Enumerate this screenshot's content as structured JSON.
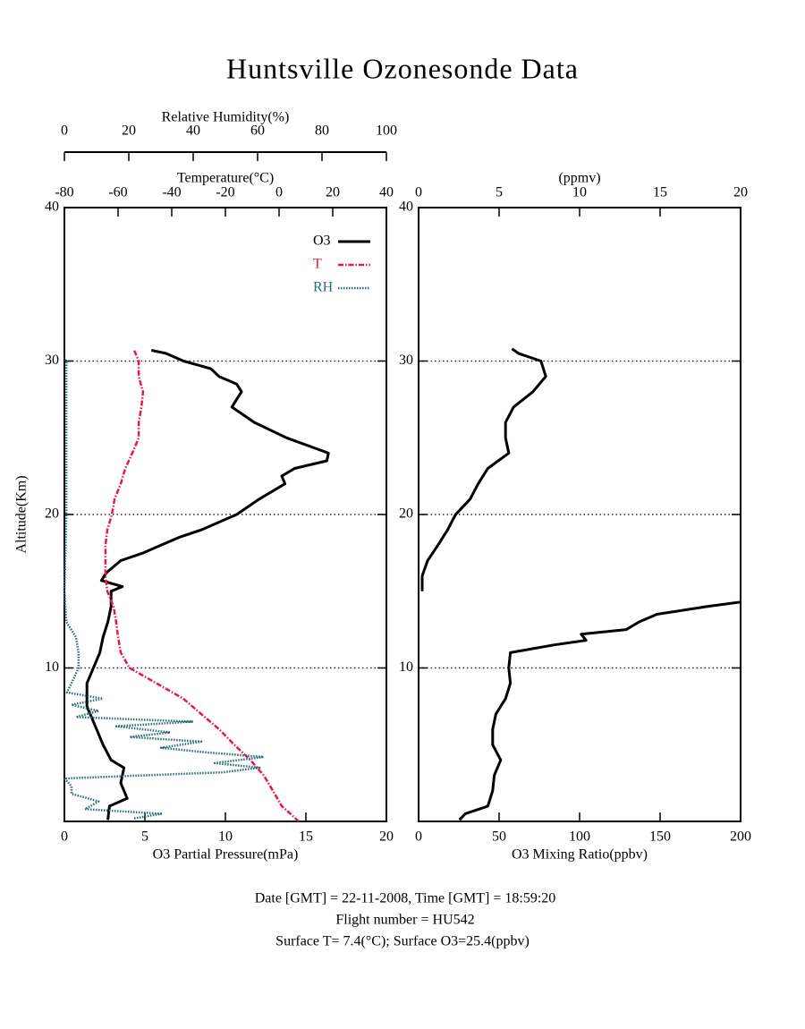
{
  "title": "Huntsville Ozonesonde Data",
  "footer": [
    "Date [GMT] = 22-11-2008,  Time [GMT] = 18:59:20",
    "Flight number = HU542",
    "Surface T= 7.4(°C); Surface O3=25.4(ppbv)"
  ],
  "chart_data": [
    {
      "type": "profile",
      "ylabel": "Altitude(Km)",
      "ylim": [
        0,
        40
      ],
      "yticks": [
        10,
        20,
        30,
        40
      ],
      "grid": true,
      "xlabel": "O3 Partial Pressure(mPa)",
      "xlim": [
        0,
        20
      ],
      "xticks": [
        0,
        5,
        10,
        15,
        20
      ],
      "x2label": "Temperature(°C)",
      "x2lim": [
        -80,
        40
      ],
      "x2ticks": [
        -80,
        -60,
        -40,
        -20,
        0,
        20,
        40
      ],
      "x3label": "Relative Humidity(%)",
      "x3lim": [
        0,
        100
      ],
      "x3ticks": [
        0,
        20,
        40,
        60,
        80,
        100
      ],
      "legend": "upper right",
      "series": [
        {
          "name": "O3",
          "color": "#000000",
          "style": "solid",
          "axis": "x",
          "altitude": [
            0.1,
            1,
            1.5,
            2.5,
            3.5,
            4,
            5,
            6,
            7.5,
            9,
            10,
            11,
            12,
            13,
            14,
            15,
            15.3,
            15.7,
            16.2,
            17,
            17.5,
            18,
            18.5,
            19,
            20,
            21,
            22,
            22.5,
            23,
            23.5,
            24,
            25,
            26,
            27,
            28,
            28.5,
            29,
            29.5,
            30,
            30.5,
            30.7
          ],
          "values": [
            2.7,
            2.8,
            3.9,
            3.5,
            3.7,
            2.9,
            2.4,
            2.0,
            1.4,
            1.4,
            1.8,
            2.2,
            2.4,
            2.7,
            2.9,
            2.9,
            3.6,
            2.3,
            2.6,
            3.5,
            4.9,
            6.0,
            7.1,
            8.5,
            10.7,
            12.1,
            13.7,
            13.5,
            14.3,
            16.3,
            16.4,
            13.8,
            11.8,
            10.4,
            11.0,
            10.7,
            9.6,
            9.1,
            7.4,
            6.3,
            5.4
          ]
        },
        {
          "name": "T",
          "color": "#e8174a",
          "style": "dashdot",
          "axis": "x2",
          "altitude": [
            0,
            1,
            2,
            3,
            4,
            5,
            6,
            7,
            8,
            9,
            10,
            11,
            12,
            13,
            14,
            15,
            16,
            17,
            18,
            19,
            20,
            21,
            22,
            23,
            24,
            25,
            26,
            27,
            28,
            29,
            30,
            30.7
          ],
          "values": [
            7.4,
            1,
            -2.3,
            -5.7,
            -10.7,
            -16.7,
            -22.3,
            -29,
            -35.7,
            -45.7,
            -55.7,
            -59,
            -60,
            -60.7,
            -61.7,
            -64,
            -64.7,
            -64.7,
            -64.7,
            -64,
            -62.3,
            -61.3,
            -59,
            -57.3,
            -54.7,
            -52.3,
            -52.3,
            -51.3,
            -50.7,
            -52.3,
            -52.3,
            -54
          ]
        },
        {
          "name": "RH",
          "color": "#2a6e78",
          "style": "dotted",
          "axis": "x3",
          "altitude": [
            0.2,
            0.5,
            0.8,
            1.3,
            1.8,
            2.3,
            2.8,
            3.2,
            3.5,
            3.8,
            4.2,
            4.5,
            4.8,
            5.2,
            5.5,
            5.8,
            6.2,
            6.5,
            6.8,
            7.2,
            7.6,
            8,
            8.4,
            9,
            10,
            11,
            12,
            13,
            15,
            20,
            25,
            30,
            30.2
          ],
          "values": [
            21.7,
            30,
            6.4,
            10.6,
            2.2,
            2.2,
            0,
            49.4,
            60.6,
            46.7,
            61.9,
            43.9,
            30,
            42.5,
            20.3,
            32.8,
            16.1,
            39.7,
            3.6,
            10.6,
            2.2,
            11.9,
            0.8,
            2.2,
            4.4,
            4.4,
            3.6,
            0.6,
            0,
            0.6,
            0.6,
            0.6,
            0
          ]
        }
      ]
    },
    {
      "type": "profile",
      "ylim": [
        0,
        40
      ],
      "yticks": [
        10,
        20,
        30,
        40
      ],
      "grid": true,
      "xlabel": "O3 Mixing Ratio(ppbv)",
      "xlim": [
        0,
        200
      ],
      "xticks": [
        0,
        50,
        100,
        150,
        200
      ],
      "x2label": "(ppmv)",
      "x2lim": [
        0,
        20
      ],
      "x2ticks": [
        0,
        5,
        10,
        15,
        20
      ],
      "series": [
        {
          "color": "#000000",
          "style": "solid",
          "axis": "x",
          "altitude": [
            0.1,
            0.5,
            1,
            2,
            3,
            4,
            5,
            6,
            7,
            8,
            9,
            10,
            11,
            11.5,
            11.8,
            12.2,
            12.5,
            13,
            13.5,
            14,
            14.3
          ],
          "values": [
            25.4,
            29,
            43,
            46,
            47,
            51,
            46,
            46,
            48,
            54,
            57,
            56,
            57,
            84,
            104,
            101,
            129,
            137,
            148,
            179,
            200
          ]
        },
        {
          "color": "#000000",
          "style": "solid",
          "axis": "x2",
          "altitude": [
            15,
            16,
            17,
            18,
            19,
            20,
            21,
            22,
            23,
            24,
            25,
            26,
            27,
            28,
            29,
            30,
            30.5,
            30.8
          ],
          "values": [
            0.22,
            0.22,
            0.56,
            1.2,
            1.8,
            2.3,
            3.2,
            3.7,
            4.3,
            5.6,
            5.4,
            5.4,
            5.9,
            7.1,
            7.9,
            7.6,
            6.2,
            5.8
          ]
        }
      ]
    }
  ]
}
